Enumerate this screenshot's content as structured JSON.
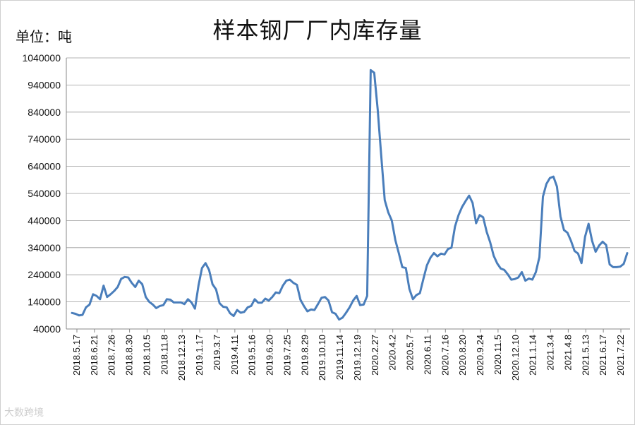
{
  "chart_data": {
    "type": "line",
    "title": "样本钢厂厂内库存量",
    "unit_label": "单位：吨",
    "ylim": [
      40000,
      1040000
    ],
    "yticks": [
      40000,
      140000,
      240000,
      340000,
      440000,
      540000,
      640000,
      740000,
      840000,
      940000,
      1040000
    ],
    "ytick_labels": [
      "40000",
      "140000",
      "240000",
      "340000",
      "440000",
      "540000",
      "640000",
      "740000",
      "840000",
      "940000",
      "1040000"
    ],
    "grid": "horizontal",
    "xtick_labels": [
      "2018.5.17",
      "2018.6.21",
      "2018.7.26",
      "2018.8.30",
      "2018.10.5",
      "2018.11.8",
      "2018.12.13",
      "2019.1.17",
      "2019.3.7",
      "2019.4.11",
      "2019.5.16",
      "2019.6.20",
      "2019.7.25",
      "2019.8.29",
      "2019.10.10",
      "2019.11.14",
      "2019.12.19",
      "2020.2.27",
      "2020.4.2",
      "2020.5.7",
      "2020.6.11",
      "2020.7.16",
      "2020.8.20",
      "2020.9.24",
      "2020.11.5",
      "2020.12.10",
      "2021.1.14",
      "2021.3.4",
      "2021.4.8",
      "2021.5.13",
      "2021.6.17",
      "2021.7.22"
    ],
    "series": [
      {
        "color": "#4a7ebb",
        "values": [
          99000,
          96000,
          90000,
          92000,
          120000,
          130000,
          168000,
          162000,
          150000,
          200000,
          158000,
          168000,
          180000,
          195000,
          225000,
          232000,
          230000,
          210000,
          195000,
          218000,
          205000,
          158000,
          140000,
          130000,
          117000,
          125000,
          128000,
          150000,
          148000,
          138000,
          138000,
          138000,
          132000,
          150000,
          138000,
          115000,
          200000,
          265000,
          283000,
          258000,
          205000,
          186000,
          135000,
          122000,
          120000,
          98000,
          88000,
          110000,
          100000,
          103000,
          120000,
          125000,
          150000,
          137000,
          137000,
          152000,
          145000,
          158000,
          175000,
          172000,
          200000,
          218000,
          222000,
          210000,
          203000,
          148000,
          125000,
          105000,
          112000,
          110000,
          132000,
          155000,
          158000,
          145000,
          102000,
          96000,
          75000,
          82000,
          100000,
          120000,
          145000,
          162000,
          128000,
          130000,
          162000,
          995000,
          985000,
          850000,
          680000,
          515000,
          470000,
          440000,
          368000,
          320000,
          268000,
          265000,
          188000,
          150000,
          165000,
          172000,
          225000,
          275000,
          303000,
          320000,
          308000,
          318000,
          315000,
          335000,
          340000,
          418000,
          460000,
          490000,
          512000,
          532000,
          505000,
          430000,
          460000,
          452000,
          398000,
          360000,
          310000,
          282000,
          263000,
          258000,
          242000,
          222000,
          224000,
          230000,
          250000,
          218000,
          226000,
          222000,
          250000,
          305000,
          528000,
          575000,
          597000,
          602000,
          565000,
          455000,
          405000,
          395000,
          365000,
          328000,
          318000,
          283000,
          380000,
          428000,
          365000,
          325000,
          348000,
          362000,
          350000,
          278000,
          268000,
          268000,
          270000,
          280000,
          320000
        ]
      }
    ]
  },
  "watermark": "大数跨境"
}
